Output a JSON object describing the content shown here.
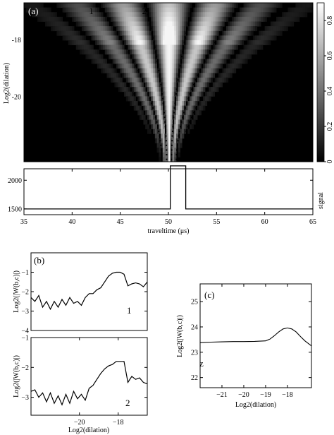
{
  "chart_data": [
    {
      "panel": "a",
      "type": "heatmap",
      "panel_label": "(a)",
      "ylabel": "Log2(dilation)",
      "ylim": [
        -22.3,
        -16.7
      ],
      "yticks": [
        "-18",
        "-20"
      ],
      "ytick_values": [
        -18,
        -20
      ],
      "colorbar": {
        "range": [
          0,
          0.9
        ],
        "ticks": [
          "0",
          "0.2",
          "0.4",
          "0.6",
          "0.8"
        ],
        "tick_values": [
          0,
          0.2,
          0.4,
          0.6,
          0.8
        ]
      },
      "markers": [
        "1",
        "2"
      ],
      "xlim": [
        35,
        65
      ],
      "marker_positions": [
        42.0,
        47.5
      ]
    },
    {
      "panel": "signal",
      "type": "line",
      "xlabel": "traveltime (μs)",
      "ylabel": "signal",
      "xlim": [
        35,
        65
      ],
      "ylim": [
        1400,
        2200
      ],
      "xticks": [
        35,
        40,
        45,
        50,
        55,
        60,
        65
      ],
      "yticks": [
        1500,
        2000
      ],
      "x": [
        35,
        50.2,
        50.2,
        51.8,
        51.8,
        65
      ],
      "y": [
        1500,
        1500,
        2250,
        2250,
        1500,
        1500
      ]
    },
    {
      "panel": "b1",
      "type": "line",
      "panel_label": "(b)",
      "curve_label": "1",
      "ylabel": "Log2(|W(b,c)|)",
      "xlim": [
        -22.5,
        -16.5
      ],
      "ylim": [
        -4,
        0
      ],
      "yticks": [
        -1,
        -2,
        -3,
        -4
      ],
      "x": [
        -22.5,
        -22.3,
        -22.1,
        -21.9,
        -21.7,
        -21.5,
        -21.3,
        -21.1,
        -20.9,
        -20.7,
        -20.5,
        -20.3,
        -20.1,
        -19.9,
        -19.7,
        -19.5,
        -19.3,
        -19.1,
        -18.9,
        -18.7,
        -18.5,
        -18.3,
        -18.1,
        -17.9,
        -17.7,
        -17.5,
        -17.3,
        -17.1,
        -16.9,
        -16.7,
        -16.5
      ],
      "y": [
        -2.3,
        -2.5,
        -2.2,
        -2.8,
        -2.5,
        -2.9,
        -2.5,
        -2.8,
        -2.4,
        -2.7,
        -2.3,
        -2.6,
        -2.5,
        -2.7,
        -2.3,
        -2.1,
        -2.1,
        -1.9,
        -1.8,
        -1.5,
        -1.2,
        -1.05,
        -1.0,
        -1.0,
        -1.1,
        -1.7,
        -1.6,
        -1.55,
        -1.6,
        -1.75,
        -1.5
      ]
    },
    {
      "panel": "b2",
      "type": "line",
      "curve_label": "2",
      "xlabel": "Log2(dilation)",
      "ylabel": "Log2(|W(b,c)|)",
      "xlim": [
        -22.5,
        -16.5
      ],
      "ylim": [
        -3.6,
        -1.0
      ],
      "xticks": [
        -20,
        -18
      ],
      "yticks": [
        -1,
        -2,
        -3
      ],
      "x": [
        -22.5,
        -22.3,
        -22.1,
        -21.9,
        -21.7,
        -21.5,
        -21.3,
        -21.1,
        -20.9,
        -20.7,
        -20.5,
        -20.3,
        -20.1,
        -19.9,
        -19.7,
        -19.5,
        -19.3,
        -19.1,
        -18.9,
        -18.7,
        -18.5,
        -18.3,
        -18.1,
        -17.9,
        -17.7,
        -17.5,
        -17.3,
        -17.1,
        -16.9,
        -16.7,
        -16.5
      ],
      "y": [
        -2.8,
        -2.75,
        -3.0,
        -2.85,
        -3.15,
        -2.85,
        -3.2,
        -2.95,
        -3.25,
        -2.9,
        -3.2,
        -2.8,
        -3.05,
        -2.9,
        -3.1,
        -2.7,
        -2.6,
        -2.4,
        -2.2,
        -2.05,
        -1.95,
        -1.9,
        -1.8,
        -1.8,
        -1.8,
        -2.5,
        -2.3,
        -2.4,
        -2.35,
        -2.5,
        -2.55
      ]
    },
    {
      "panel": "c",
      "type": "line",
      "panel_label": "(c)",
      "curve_label": "z",
      "xlabel": "Log2(dilation)",
      "ylabel": "Log2(|W(b,c)|)",
      "xlim": [
        -22,
        -16.9
      ],
      "ylim": [
        21.6,
        25.7
      ],
      "xticks": [
        -21,
        -20,
        -19,
        -18
      ],
      "yticks": [
        22,
        23,
        24,
        25
      ],
      "x": [
        -22,
        -21.5,
        -21,
        -20.5,
        -20,
        -19.5,
        -19.0,
        -18.8,
        -18.6,
        -18.4,
        -18.2,
        -18.0,
        -17.8,
        -17.6,
        -17.4,
        -17.2,
        -16.9
      ],
      "y": [
        23.38,
        23.4,
        23.41,
        23.42,
        23.42,
        23.43,
        23.45,
        23.52,
        23.65,
        23.8,
        23.92,
        23.96,
        23.92,
        23.8,
        23.62,
        23.45,
        23.25
      ]
    }
  ]
}
